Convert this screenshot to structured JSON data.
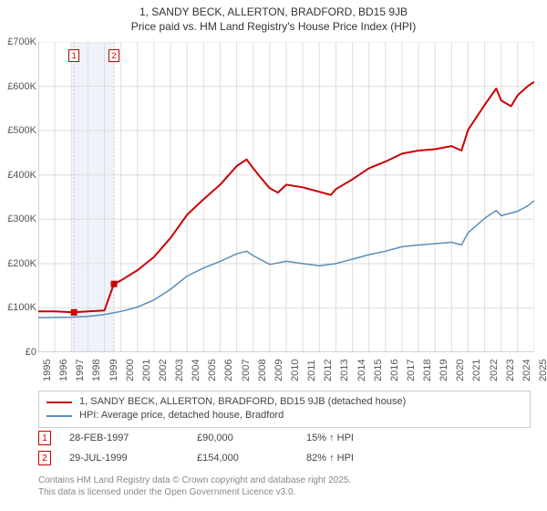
{
  "title": {
    "line1": "1, SANDY BECK, ALLERTON, BRADFORD, BD15 9JB",
    "line2": "Price paid vs. HM Land Registry's House Price Index (HPI)"
  },
  "chart": {
    "type": "line",
    "background_color": "#ffffff",
    "x_years": [
      1995,
      1996,
      1997,
      1998,
      1999,
      2000,
      2001,
      2002,
      2003,
      2004,
      2005,
      2006,
      2007,
      2008,
      2009,
      2010,
      2011,
      2012,
      2013,
      2014,
      2015,
      2016,
      2017,
      2018,
      2019,
      2020,
      2021,
      2022,
      2023,
      2024,
      2025
    ],
    "x_range": [
      1995,
      2025
    ],
    "ylim": [
      0,
      700000
    ],
    "ytick_step": 100000,
    "ytick_labels": [
      "£0",
      "£100K",
      "£200K",
      "£300K",
      "£400K",
      "£500K",
      "£600K",
      "£700K"
    ],
    "grid_color": "#dddddd",
    "axis_color": "#aaaaaa",
    "highlight_band": {
      "x_start": 1997.05,
      "x_end": 1999.6,
      "fill": "#eef3fa"
    },
    "vlines": [
      {
        "x": 1997.16,
        "color": "#e8c0c0"
      },
      {
        "x": 1999.58,
        "color": "#e8c0c0"
      }
    ],
    "series": [
      {
        "name": "price_paid",
        "label": "1, SANDY BECK, ALLERTON, BRADFORD, BD15 9JB (detached house)",
        "color": "#cc0000",
        "line_width": 2,
        "points": [
          [
            1995,
            92000
          ],
          [
            1996,
            92000
          ],
          [
            1997.15,
            90000
          ],
          [
            1997.16,
            90000
          ],
          [
            1998,
            92000
          ],
          [
            1999,
            94000
          ],
          [
            1999.57,
            154000
          ],
          [
            1999.58,
            154000
          ],
          [
            2000,
            162000
          ],
          [
            2001,
            185000
          ],
          [
            2002,
            215000
          ],
          [
            2003,
            258000
          ],
          [
            2004,
            310000
          ],
          [
            2005,
            345000
          ],
          [
            2006,
            378000
          ],
          [
            2007,
            420000
          ],
          [
            2007.6,
            435000
          ],
          [
            2008,
            415000
          ],
          [
            2008.5,
            392000
          ],
          [
            2009,
            370000
          ],
          [
            2009.5,
            360000
          ],
          [
            2010,
            378000
          ],
          [
            2011,
            372000
          ],
          [
            2012,
            362000
          ],
          [
            2012.7,
            355000
          ],
          [
            2013,
            368000
          ],
          [
            2014,
            390000
          ],
          [
            2015,
            415000
          ],
          [
            2016,
            430000
          ],
          [
            2017,
            448000
          ],
          [
            2018,
            455000
          ],
          [
            2019,
            458000
          ],
          [
            2020,
            465000
          ],
          [
            2020.6,
            455000
          ],
          [
            2021,
            502000
          ],
          [
            2022,
            558000
          ],
          [
            2022.7,
            595000
          ],
          [
            2023,
            568000
          ],
          [
            2023.6,
            555000
          ],
          [
            2024,
            580000
          ],
          [
            2024.6,
            600000
          ],
          [
            2025,
            610000
          ]
        ]
      },
      {
        "name": "hpi",
        "label": "HPI: Average price, detached house, Bradford",
        "color": "#5b8db8",
        "line_width": 1.5,
        "points": [
          [
            1995,
            78000
          ],
          [
            1996,
            78500
          ],
          [
            1997,
            79000
          ],
          [
            1998,
            81000
          ],
          [
            1999,
            85000
          ],
          [
            2000,
            92000
          ],
          [
            2001,
            102000
          ],
          [
            2002,
            118000
          ],
          [
            2003,
            142000
          ],
          [
            2004,
            172000
          ],
          [
            2005,
            190000
          ],
          [
            2006,
            205000
          ],
          [
            2007,
            222000
          ],
          [
            2007.6,
            228000
          ],
          [
            2008,
            218000
          ],
          [
            2009,
            198000
          ],
          [
            2010,
            205000
          ],
          [
            2011,
            200000
          ],
          [
            2012,
            195000
          ],
          [
            2013,
            200000
          ],
          [
            2014,
            210000
          ],
          [
            2015,
            220000
          ],
          [
            2016,
            228000
          ],
          [
            2017,
            238000
          ],
          [
            2018,
            242000
          ],
          [
            2019,
            245000
          ],
          [
            2020,
            248000
          ],
          [
            2020.6,
            242000
          ],
          [
            2021,
            270000
          ],
          [
            2022,
            302000
          ],
          [
            2022.7,
            320000
          ],
          [
            2023,
            308000
          ],
          [
            2024,
            318000
          ],
          [
            2024.6,
            330000
          ],
          [
            2025,
            342000
          ]
        ]
      }
    ],
    "sale_markers": [
      {
        "n": "1",
        "x": 1997.16,
        "y": 90000
      },
      {
        "n": "2",
        "x": 1999.58,
        "y": 154000
      }
    ],
    "marker_top_boxes": [
      {
        "n": "1",
        "x": 1997.16
      },
      {
        "n": "2",
        "x": 1999.58
      }
    ]
  },
  "legend": {
    "rows": [
      {
        "color": "#cc0000",
        "label": "1, SANDY BECK, ALLERTON, BRADFORD, BD15 9JB (detached house)"
      },
      {
        "color": "#5b8db8",
        "label": "HPI: Average price, detached house, Bradford"
      }
    ]
  },
  "annotations": [
    {
      "n": "1",
      "border": "#cc0000",
      "date": "28-FEB-1997",
      "price": "£90,000",
      "delta": "15% ↑ HPI"
    },
    {
      "n": "2",
      "border": "#cc0000",
      "date": "29-JUL-1999",
      "price": "£154,000",
      "delta": "82% ↑ HPI"
    }
  ],
  "footer": {
    "line1": "Contains HM Land Registry data © Crown copyright and database right 2025.",
    "line2": "This data is licensed under the Open Government Licence v3.0."
  }
}
